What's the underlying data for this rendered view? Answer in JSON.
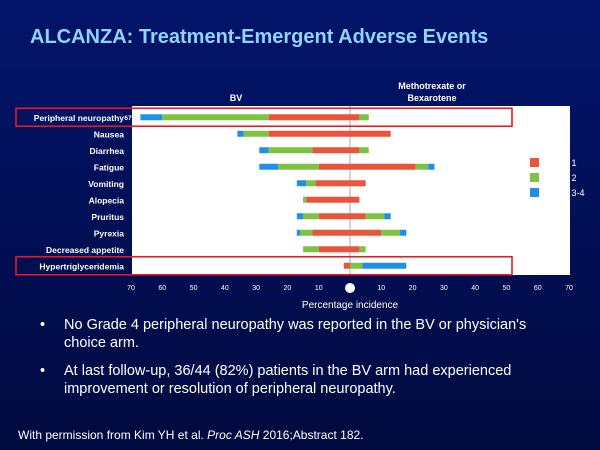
{
  "slide": {
    "title": "ALCANZA: Treatment-Emergent Adverse Events",
    "bullets": [
      "No Grade 4 peripheral neuropathy was reported in the BV or physician's choice arm.",
      "At last follow-up, 36/44 (82%) patients in the BV arm had experienced improvement or resolution of peripheral neuropathy."
    ],
    "footer": {
      "prefix": "With permission from Kim YH et al.",
      "journal": "Proc ASH",
      "suffix": "2016;Abstract 182."
    }
  },
  "chart_data": {
    "type": "bar",
    "orientation": "horizontal-butterfly",
    "left_arm_label": "BV",
    "right_arm_label": "Methotrexate or Bexarotene",
    "xlabel": "Percentage incidence",
    "x_ticks": [
      "70",
      "60",
      "50",
      "40",
      "30",
      "20",
      "10",
      "0",
      "10",
      "20",
      "30",
      "40",
      "50",
      "60",
      "70"
    ],
    "xlim": [
      -70,
      70
    ],
    "grid": false,
    "legend_position": "right",
    "categories": [
      "Peripheral neuropathy",
      "Nausea",
      "Diarrhea",
      "Fatigue",
      "Vomiting",
      "Alopecia",
      "Pruritus",
      "Pyrexia",
      "Decreased appetite",
      "Hypertriglyceridemia"
    ],
    "highlighted": [
      "Peripheral neuropathy",
      "Hypertriglyceridemia"
    ],
    "series": [
      {
        "name": "Grade 1",
        "color": "#e8553d",
        "bv": [
          26,
          26,
          12,
          10,
          11,
          14,
          10,
          12,
          10,
          2
        ],
        "comp": [
          3,
          13,
          3,
          21,
          5,
          3,
          5,
          10,
          3,
          0
        ]
      },
      {
        "name": "Grade 2",
        "color": "#7dc242",
        "bv": [
          34,
          8,
          14,
          13,
          3,
          1,
          5,
          4,
          5,
          0
        ],
        "comp": [
          3,
          0,
          3,
          4,
          0,
          0,
          6,
          6,
          2,
          4
        ]
      },
      {
        "name": "Grade 3-4",
        "color": "#1e90e6",
        "bv": [
          7,
          2,
          3,
          6,
          3,
          0,
          2,
          1,
          0,
          0
        ],
        "comp": [
          0,
          0,
          0,
          2,
          0,
          0,
          2,
          2,
          0,
          14
        ]
      }
    ],
    "bv_totals": [
      "67%",
      "36%",
      "29%",
      "29%",
      "17%",
      "15%",
      "17%",
      "17%",
      "15%",
      "2%"
    ],
    "comp_totals": [
      "6%",
      "13%",
      "6%",
      "27%",
      "5%",
      "3%",
      "13%",
      "18%",
      "5%",
      "18%"
    ]
  }
}
